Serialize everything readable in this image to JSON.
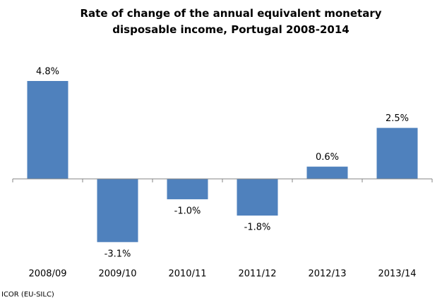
{
  "chart_data": {
    "type": "bar",
    "title": "Rate of change of the annual equivalent monetary disposable income, Portugal 2008-2014",
    "categories": [
      "2008/09",
      "2009/10",
      "2010/11",
      "2011/12",
      "2012/13",
      "2013/14"
    ],
    "values": [
      4.8,
      -3.1,
      -1.0,
      -1.8,
      0.6,
      2.5
    ],
    "value_labels": [
      "4.8%",
      "-3.1%",
      "-1.0%",
      "-1.8%",
      "0.6%",
      "2.5%"
    ],
    "color": "#4f81bd",
    "source": "ICOR (EU-SILC)"
  }
}
